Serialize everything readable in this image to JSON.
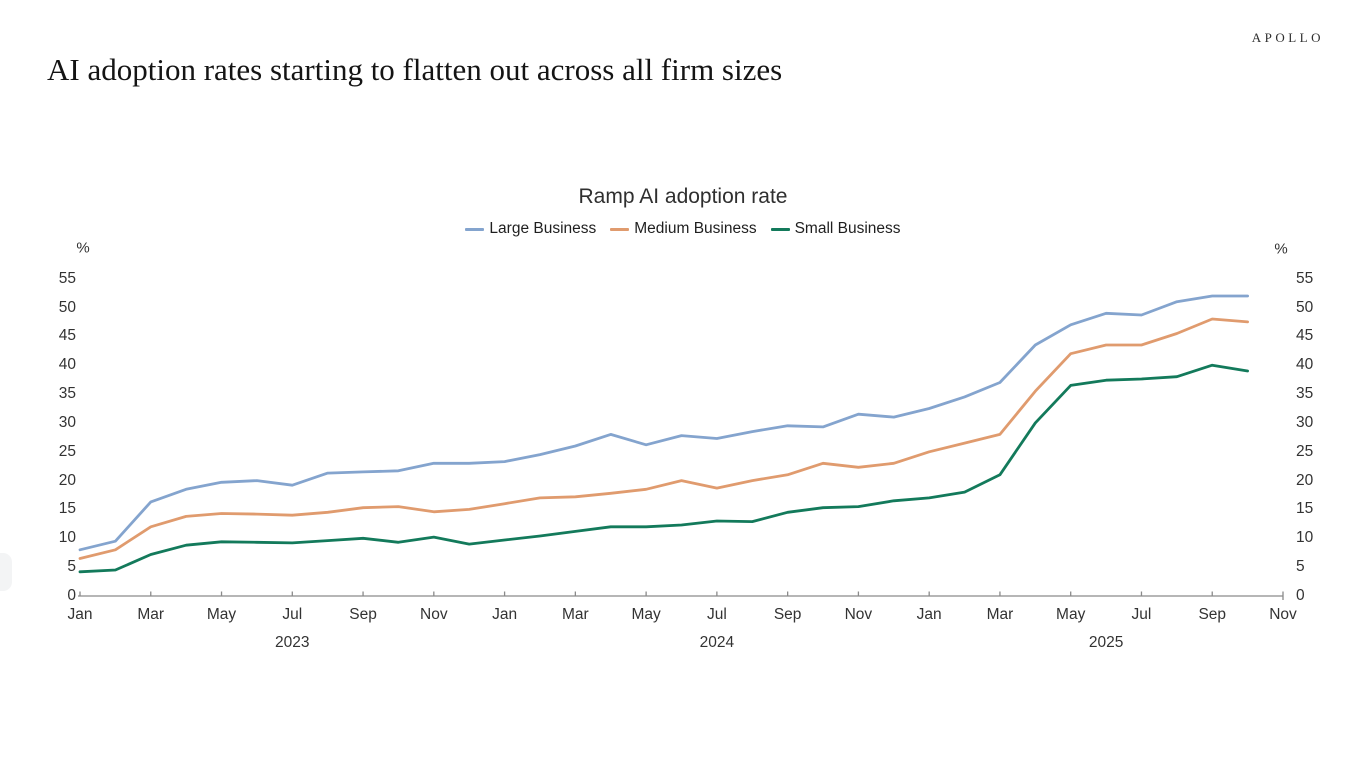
{
  "header": {
    "brand": "APOLLO",
    "title": "AI adoption rates starting to flatten out across all firm sizes"
  },
  "chart_data": {
    "type": "line",
    "title": "Ramp AI adoption rate",
    "y_axis_unit_left": "%",
    "y_axis_unit_right": "%",
    "ylim": [
      0,
      55
    ],
    "y_ticks": [
      0,
      5,
      10,
      15,
      20,
      25,
      30,
      35,
      40,
      45,
      50,
      55
    ],
    "grid": false,
    "legend_position": "top-center",
    "x_range": [
      "Jan 2023",
      "Nov 2025"
    ],
    "x_tick_labels": [
      "Jan",
      "Mar",
      "May",
      "Jul",
      "Sep",
      "Nov",
      "Jan",
      "Mar",
      "May",
      "Jul",
      "Sep",
      "Nov",
      "Jan",
      "Mar",
      "May",
      "Jul",
      "Sep",
      "Nov"
    ],
    "year_labels": [
      "2023",
      "2024",
      "2025"
    ],
    "months": [
      "Jan 2023",
      "Feb 2023",
      "Mar 2023",
      "Apr 2023",
      "May 2023",
      "Jun 2023",
      "Jul 2023",
      "Aug 2023",
      "Sep 2023",
      "Oct 2023",
      "Nov 2023",
      "Dec 2023",
      "Jan 2024",
      "Feb 2024",
      "Mar 2024",
      "Apr 2024",
      "May 2024",
      "Jun 2024",
      "Jul 2024",
      "Aug 2024",
      "Sep 2024",
      "Oct 2024",
      "Nov 2024",
      "Dec 2024",
      "Jan 2025",
      "Feb 2025",
      "Mar 2025",
      "Apr 2025",
      "May 2025",
      "Jun 2025",
      "Jul 2025",
      "Aug 2025",
      "Sep 2025",
      "Oct 2025"
    ],
    "series": [
      {
        "name": "Large Business",
        "color": "#84A4CE",
        "values": [
          8,
          9.5,
          16.3,
          18.5,
          19.7,
          20,
          19.2,
          21.3,
          21.5,
          21.7,
          23,
          23,
          23.3,
          24.5,
          26,
          28,
          26.2,
          27.8,
          27.3,
          28.5,
          29.5,
          29.3,
          31.5,
          31,
          32.5,
          34.5,
          37,
          43.5,
          47,
          49,
          48.7,
          51,
          52,
          52
        ]
      },
      {
        "name": "Medium Business",
        "color": "#E09B6E",
        "values": [
          6.5,
          8,
          12,
          13.8,
          14.3,
          14.2,
          14,
          14.5,
          15.3,
          15.5,
          14.6,
          15,
          16,
          17,
          17.2,
          17.8,
          18.5,
          20,
          18.7,
          20,
          21,
          23,
          22.3,
          23,
          25,
          26.5,
          28,
          35.5,
          42,
          43.5,
          43.5,
          45.5,
          48,
          47.5
        ]
      },
      {
        "name": "Small Business",
        "color": "#137A5B",
        "values": [
          4.2,
          4.5,
          7.2,
          8.8,
          9.4,
          9.3,
          9.2,
          9.6,
          10,
          9.3,
          10.2,
          9,
          9.7,
          10.4,
          11.2,
          12,
          12,
          12.3,
          13,
          12.9,
          14.5,
          15.3,
          15.5,
          16.5,
          17,
          18,
          21,
          30,
          36.5,
          37.4,
          37.6,
          38,
          40,
          39
        ]
      }
    ]
  }
}
